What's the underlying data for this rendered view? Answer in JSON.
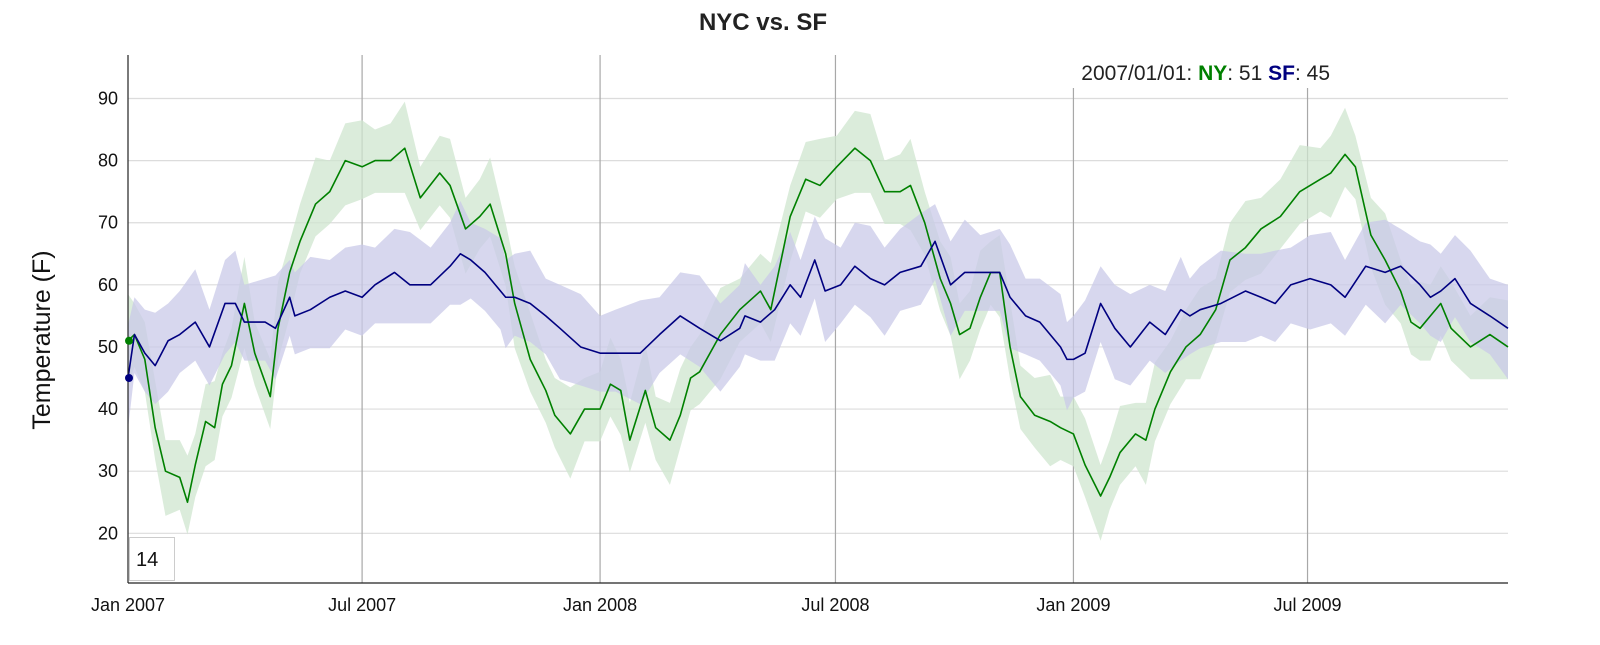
{
  "chart_data": {
    "type": "line",
    "title": "NYC vs. SF",
    "xlabel": "",
    "ylabel": "Temperature (F)",
    "x_units": "days since 2007-01-01",
    "xlim": [
      0,
      1067
    ],
    "ylim": [
      12,
      97
    ],
    "grid": true,
    "x_ticks": [
      {
        "value": 0,
        "label": "Jan 2007"
      },
      {
        "value": 181,
        "label": "Jul 2007"
      },
      {
        "value": 365,
        "label": "Jan 2008"
      },
      {
        "value": 547,
        "label": "Jul 2008"
      },
      {
        "value": 731,
        "label": "Jan 2009"
      },
      {
        "value": 912,
        "label": "Jul 2009"
      }
    ],
    "y_ticks": [
      20,
      30,
      40,
      50,
      60,
      70,
      80,
      90
    ],
    "legend": {
      "placement": "top-right",
      "date": "2007/01/01",
      "entries": [
        {
          "name": "NY",
          "value": "51"
        },
        {
          "name": "SF",
          "value": "45"
        }
      ]
    },
    "roll_period": "14",
    "series": [
      {
        "name": "NY",
        "color": "#008000",
        "band_color": "#cfe6cf",
        "band_halfwidth": 6,
        "x": [
          0,
          5,
          13,
          21,
          29,
          40,
          46,
          52,
          60,
          67,
          73,
          80,
          90,
          98,
          110,
          116,
          125,
          133,
          145,
          156,
          168,
          181,
          191,
          203,
          214,
          226,
          241,
          249,
          261,
          272,
          280,
          292,
          299,
          311,
          323,
          330,
          342,
          353,
          365,
          373,
          381,
          388,
          400,
          408,
          419,
          427,
          435,
          442,
          458,
          473,
          489,
          497,
          512,
          524,
          535,
          548,
          562,
          574,
          585,
          597,
          605,
          616,
          628,
          636,
          643,
          651,
          659,
          667,
          674,
          682,
          690,
          701,
          713,
          721,
          731,
          740,
          752,
          759,
          767,
          779,
          787,
          794,
          806,
          818,
          829,
          841,
          852,
          864,
          876,
          891,
          906,
          922,
          930,
          941,
          949,
          961,
          972,
          984,
          992,
          999,
          1007,
          1015,
          1023,
          1038,
          1053,
          1067
        ],
        "y": [
          51,
          52,
          48,
          37,
          30,
          29,
          25,
          31,
          38,
          37,
          44,
          47,
          57,
          49,
          42,
          53,
          62,
          67,
          73,
          75,
          80,
          79,
          80,
          80,
          82,
          74,
          78,
          76,
          69,
          71,
          73,
          65,
          57,
          48,
          43,
          39,
          36,
          40,
          40,
          44,
          43,
          35,
          43,
          37,
          35,
          39,
          45,
          46,
          52,
          56,
          59,
          56,
          71,
          77,
          76,
          79,
          82,
          80,
          75,
          75,
          76,
          70,
          61,
          57,
          52,
          53,
          58,
          62,
          62,
          50,
          42,
          39,
          38,
          37,
          36,
          31,
          26,
          29,
          33,
          36,
          35,
          40,
          46,
          50,
          52,
          56,
          64,
          66,
          69,
          71,
          75,
          77,
          78,
          81,
          79,
          68,
          64,
          59,
          54,
          53,
          55,
          57,
          53,
          50,
          52,
          50
        ]
      },
      {
        "name": "SF",
        "color": "#000080",
        "band_color": "#c9c9e8",
        "band_halfwidth": 7,
        "x": [
          0,
          5,
          13,
          21,
          31,
          40,
          52,
          63,
          75,
          83,
          90,
          106,
          114,
          125,
          129,
          141,
          156,
          168,
          181,
          191,
          206,
          218,
          234,
          249,
          257,
          265,
          276,
          288,
          292,
          299,
          311,
          323,
          334,
          350,
          365,
          377,
          396,
          411,
          427,
          442,
          458,
          473,
          477,
          489,
          500,
          512,
          520,
          531,
          539,
          551,
          562,
          574,
          585,
          597,
          613,
          624,
          636,
          647,
          659,
          674,
          682,
          694,
          705,
          721,
          726,
          731,
          740,
          752,
          763,
          775,
          790,
          802,
          814,
          821,
          829,
          845,
          864,
          876,
          887,
          899,
          914,
          930,
          941,
          957,
          972,
          984,
          999,
          1007,
          1015,
          1026,
          1038,
          1053,
          1067
        ],
        "y": [
          45,
          52,
          49,
          47,
          51,
          52,
          54,
          50,
          57,
          57,
          54,
          54,
          53,
          58,
          55,
          56,
          58,
          59,
          58,
          60,
          62,
          60,
          60,
          63,
          65,
          64,
          62,
          59,
          58,
          58,
          57,
          55,
          53,
          50,
          49,
          49,
          49,
          52,
          55,
          53,
          51,
          53,
          55,
          54,
          56,
          60,
          58,
          64,
          59,
          60,
          63,
          61,
          60,
          62,
          63,
          67,
          60,
          62,
          62,
          62,
          58,
          55,
          54,
          50,
          48,
          48,
          49,
          57,
          53,
          50,
          54,
          52,
          56,
          55,
          56,
          57,
          59,
          58,
          57,
          60,
          61,
          60,
          58,
          63,
          62,
          63,
          60,
          58,
          59,
          61,
          57,
          55,
          53
        ]
      }
    ]
  }
}
